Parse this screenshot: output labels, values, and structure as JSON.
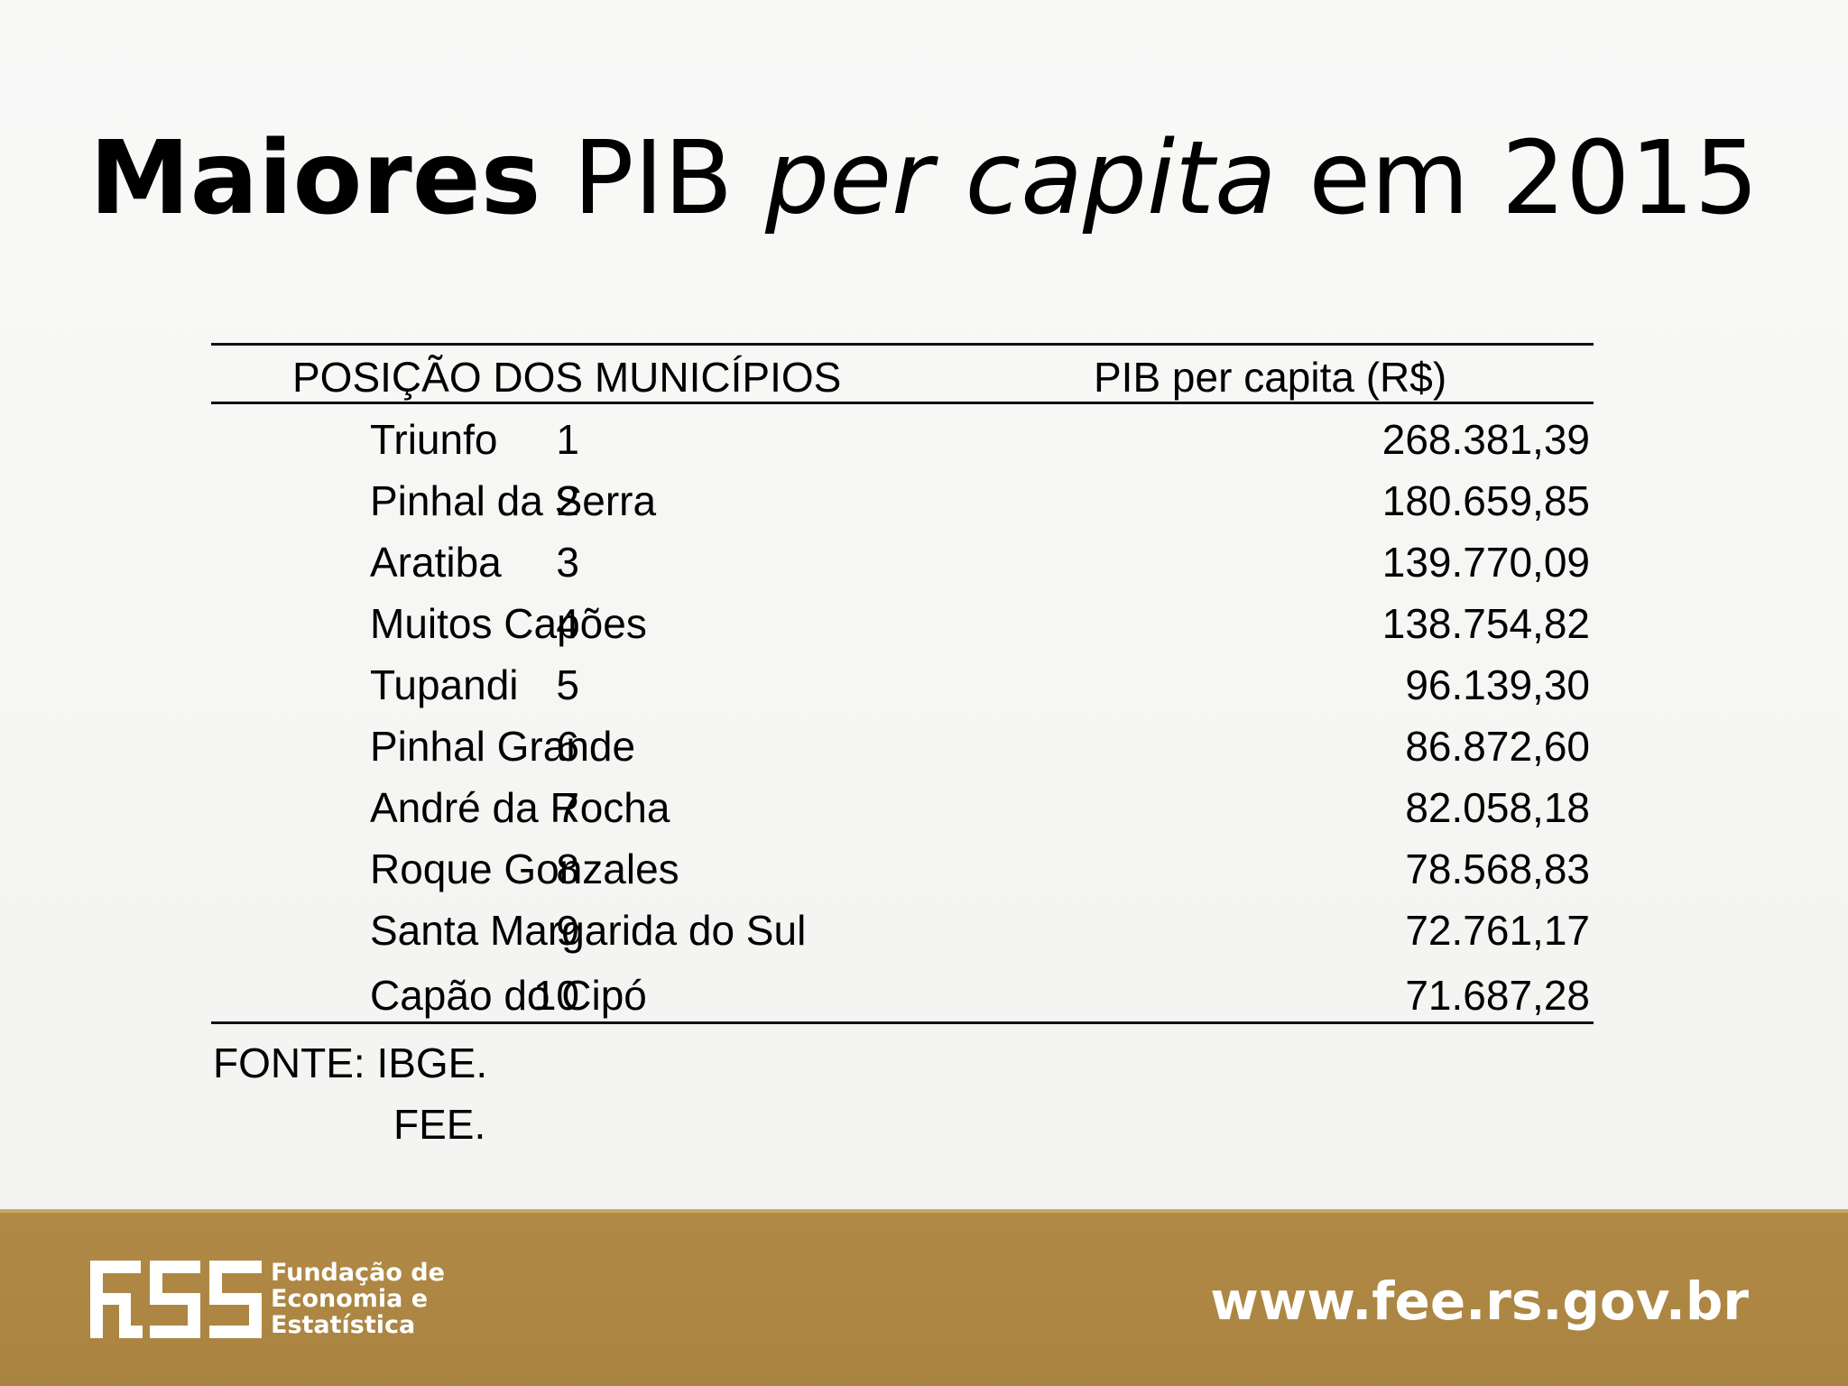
{
  "title": {
    "bold": "Maiores",
    "normal1": "PIB",
    "italic": "per capita",
    "normal2": "em 2015"
  },
  "table": {
    "headers": [
      "POSIÇÃO DOS MUNICÍPIOS",
      "PIB per capita (R$)"
    ],
    "rows": [
      {
        "rank": "1",
        "name": "Triunfo",
        "value": "268.381,39"
      },
      {
        "rank": "2",
        "name": "Pinhal da Serra",
        "value": "180.659,85"
      },
      {
        "rank": "3",
        "name": "Aratiba",
        "value": "139.770,09"
      },
      {
        "rank": "4",
        "name": "Muitos Capões",
        "value": "138.754,82"
      },
      {
        "rank": "5",
        "name": "Tupandi",
        "value": "96.139,30"
      },
      {
        "rank": "6",
        "name": "Pinhal Grande",
        "value": "86.872,60"
      },
      {
        "rank": "7",
        "name": "André da Rocha",
        "value": "82.058,18"
      },
      {
        "rank": "8",
        "name": "Roque Gonzales",
        "value": "78.568,83"
      },
      {
        "rank": "9",
        "name": "Santa Margarida do Sul",
        "value": "72.761,17"
      },
      {
        "rank": "10",
        "name": "Capão do Cipó",
        "value": "71.687,28"
      }
    ]
  },
  "source": {
    "line1": "FONTE: IBGE.",
    "line2": "FEE."
  },
  "footer": {
    "org_lines": [
      "Fundação de",
      "Economia e",
      "Estatística"
    ],
    "url": "www.fee.rs.gov.br",
    "background_color": "#ad8742"
  }
}
